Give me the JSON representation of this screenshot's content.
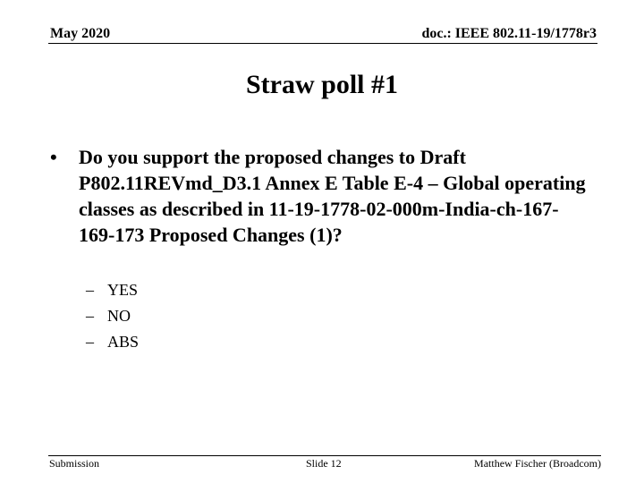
{
  "header": {
    "date": "May 2020",
    "doc_id": "doc.: IEEE 802.11-19/1778r3"
  },
  "slide": {
    "title": "Straw poll #1",
    "bullet": "Do you support the proposed changes to Draft P802.11REVmd_D3.1 Annex E Table E-4 – Global operating classes as described in 11-19-1778-02-000m-India-ch-167-169-173 Proposed Changes (1)?",
    "bullet_marker": "•",
    "options": [
      {
        "dash": "–",
        "label": "YES"
      },
      {
        "dash": "–",
        "label": "NO"
      },
      {
        "dash": "–",
        "label": "ABS"
      }
    ]
  },
  "footer": {
    "left": "Submission",
    "center": "Slide 12",
    "right": "Matthew Fischer (Broadcom)"
  }
}
